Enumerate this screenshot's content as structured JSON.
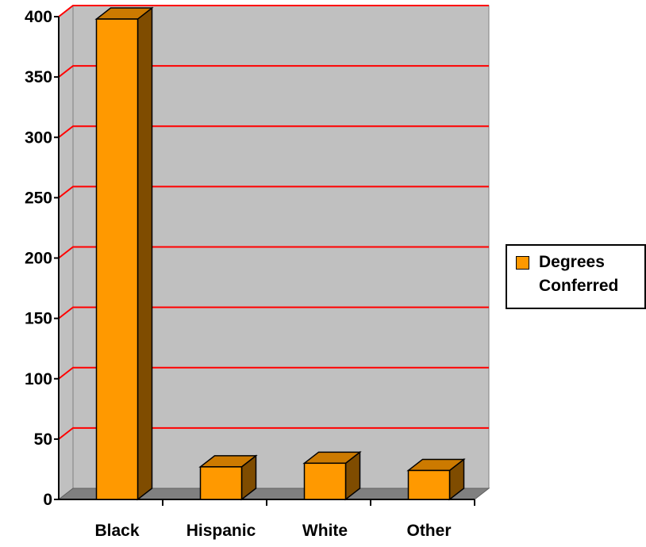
{
  "chart_data": {
    "type": "bar",
    "title": "",
    "xlabel": "",
    "ylabel": "",
    "categories": [
      "Black",
      "Hispanic",
      "White",
      "Other"
    ],
    "series": [
      {
        "name": "Degrees Conferred",
        "values": [
          398,
          27,
          30,
          24
        ],
        "color": "#FF9900",
        "side_color": "#7F4C00"
      }
    ],
    "ylim": [
      0,
      400
    ],
    "yticks": [
      "0",
      "50",
      "100",
      "150",
      "200",
      "250",
      "300",
      "350",
      "400"
    ],
    "grid": true,
    "legend": "right"
  },
  "legend": {
    "label": "Degrees\nConferred"
  },
  "colors": {
    "wall": "#C0C0C0",
    "floor": "#808080",
    "gridline": "#FF0000",
    "bar_front": "#FF9900",
    "bar_side": "#7F4C00",
    "bar_top": "#CC7A00"
  }
}
